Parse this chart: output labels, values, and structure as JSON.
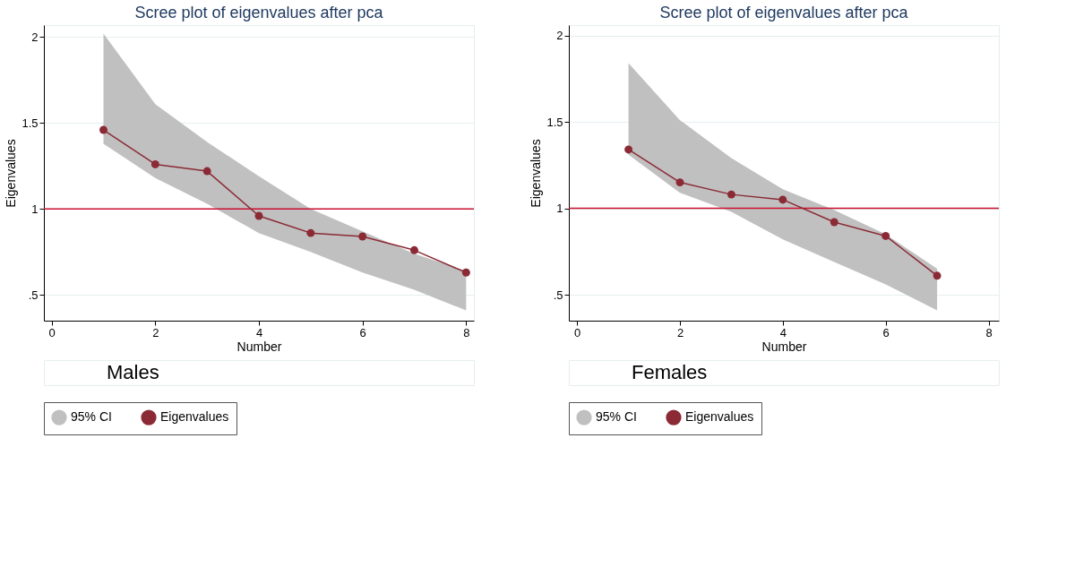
{
  "chart_data": [
    {
      "type": "line",
      "title": "Scree plot of eigenvalues after pca",
      "xlabel": "Number",
      "ylabel": "Eigenvalues",
      "x": [
        1,
        2,
        3,
        4,
        5,
        6,
        7,
        8
      ],
      "series": [
        {
          "name": "95% CI",
          "type": "area",
          "color": "#c0c0c0",
          "values": [
            null,
            null,
            null,
            null,
            null,
            null,
            null,
            null
          ],
          "lower": [
            1.38,
            1.18,
            1.03,
            0.86,
            0.75,
            0.63,
            0.53,
            0.41
          ],
          "upper": [
            2.02,
            1.61,
            1.39,
            1.19,
            1.0,
            0.87,
            0.74,
            0.64
          ]
        },
        {
          "name": "Eigenvalues",
          "color": "#8b2a35",
          "values": [
            1.46,
            1.26,
            1.22,
            0.96,
            0.86,
            0.84,
            0.76,
            0.63
          ]
        }
      ],
      "xlim": [
        -0.15,
        8.15
      ],
      "ylim": [
        0.35,
        2.07
      ],
      "xticks": [
        0,
        2,
        4,
        6,
        8
      ],
      "yticks": [
        {
          "value": 0.5,
          "label": ".5"
        },
        1,
        1.5,
        2
      ],
      "ref_lines": [
        {
          "axis": "y",
          "value": 1,
          "color": "#c8102e"
        }
      ],
      "grid": "y",
      "legend": "bottom",
      "marker": "circle",
      "line_style": "solid",
      "annotations": [
        "Males"
      ]
    },
    {
      "type": "line",
      "title": "Scree plot of eigenvalues after pca",
      "xlabel": "Number",
      "ylabel": "Eigenvalues",
      "x": [
        1,
        2,
        3,
        4,
        5,
        6,
        7
      ],
      "series": [
        {
          "name": "95% CI",
          "type": "area",
          "color": "#c0c0c0",
          "values": [
            null,
            null,
            null,
            null,
            null,
            null,
            null
          ],
          "lower": [
            1.31,
            1.09,
            0.98,
            0.82,
            0.69,
            0.56,
            0.41
          ],
          "upper": [
            1.84,
            1.51,
            1.29,
            1.11,
            0.99,
            0.85,
            0.65
          ]
        },
        {
          "name": "Eigenvalues",
          "color": "#8b2a35",
          "values": [
            1.34,
            1.15,
            1.08,
            1.05,
            0.92,
            0.84,
            0.61
          ]
        }
      ],
      "xlim": [
        -0.16,
        8.2
      ],
      "ylim": [
        0.35,
        2.06
      ],
      "xticks": [
        0,
        2,
        4,
        6,
        8
      ],
      "yticks": [
        {
          "value": 0.5,
          "label": ".5"
        },
        1,
        1.5,
        2
      ],
      "ref_lines": [
        {
          "axis": "y",
          "value": 1,
          "color": "#c8102e"
        }
      ],
      "grid": "y",
      "legend": "bottom",
      "marker": "circle",
      "line_style": "solid",
      "annotations": [
        "Females"
      ]
    }
  ]
}
